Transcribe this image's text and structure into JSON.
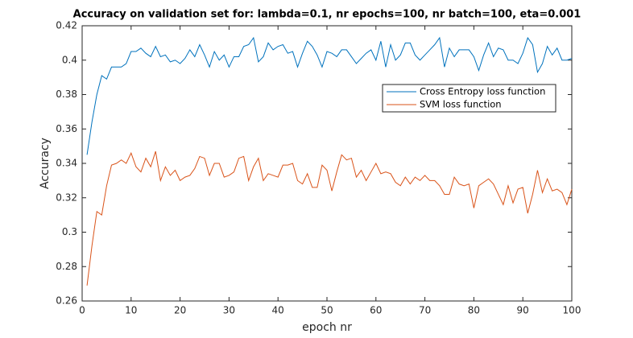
{
  "chart_data": {
    "type": "line",
    "title": "Accuracy on validation set for: lambda=0.1, nr epochs=100, nr batch=100, eta=0.001",
    "xlabel": "epoch nr",
    "ylabel": "Accuracy",
    "x": [
      1,
      2,
      3,
      4,
      5,
      6,
      7,
      8,
      9,
      10,
      11,
      12,
      13,
      14,
      15,
      16,
      17,
      18,
      19,
      20,
      21,
      22,
      23,
      24,
      25,
      26,
      27,
      28,
      29,
      30,
      31,
      32,
      33,
      34,
      35,
      36,
      37,
      38,
      39,
      40,
      41,
      42,
      43,
      44,
      45,
      46,
      47,
      48,
      49,
      50,
      51,
      52,
      53,
      54,
      55,
      56,
      57,
      58,
      59,
      60,
      61,
      62,
      63,
      64,
      65,
      66,
      67,
      68,
      69,
      70,
      71,
      72,
      73,
      74,
      75,
      76,
      77,
      78,
      79,
      80,
      81,
      82,
      83,
      84,
      85,
      86,
      87,
      88,
      89,
      90,
      91,
      92,
      93,
      94,
      95,
      96,
      97,
      98,
      99,
      100
    ],
    "series": [
      {
        "name": "Cross Entropy loss function",
        "color": "#0072bd",
        "values": [
          0.345,
          0.364,
          0.38,
          0.391,
          0.389,
          0.396,
          0.396,
          0.396,
          0.398,
          0.405,
          0.405,
          0.407,
          0.404,
          0.402,
          0.408,
          0.402,
          0.403,
          0.399,
          0.4,
          0.398,
          0.401,
          0.406,
          0.402,
          0.409,
          0.403,
          0.396,
          0.405,
          0.4,
          0.403,
          0.396,
          0.402,
          0.402,
          0.408,
          0.409,
          0.413,
          0.399,
          0.402,
          0.41,
          0.406,
          0.408,
          0.409,
          0.404,
          0.405,
          0.396,
          0.404,
          0.411,
          0.408,
          0.403,
          0.396,
          0.405,
          0.404,
          0.402,
          0.406,
          0.406,
          0.402,
          0.398,
          0.401,
          0.404,
          0.406,
          0.4,
          0.411,
          0.396,
          0.409,
          0.4,
          0.403,
          0.41,
          0.41,
          0.403,
          0.4,
          0.403,
          0.406,
          0.409,
          0.413,
          0.396,
          0.407,
          0.402,
          0.406,
          0.406,
          0.406,
          0.402,
          0.394,
          0.403,
          0.41,
          0.402,
          0.407,
          0.406,
          0.4,
          0.4,
          0.398,
          0.404,
          0.413,
          0.409,
          0.393,
          0.398,
          0.408,
          0.403,
          0.407,
          0.4,
          0.4,
          0.401
        ]
      },
      {
        "name": "SVM loss function",
        "color": "#d95319",
        "values": [
          0.269,
          0.292,
          0.312,
          0.31,
          0.327,
          0.339,
          0.34,
          0.342,
          0.34,
          0.346,
          0.338,
          0.335,
          0.343,
          0.338,
          0.347,
          0.33,
          0.338,
          0.333,
          0.336,
          0.33,
          0.332,
          0.333,
          0.337,
          0.344,
          0.343,
          0.333,
          0.34,
          0.34,
          0.332,
          0.333,
          0.335,
          0.343,
          0.344,
          0.33,
          0.338,
          0.343,
          0.33,
          0.334,
          0.333,
          0.332,
          0.339,
          0.339,
          0.34,
          0.33,
          0.328,
          0.334,
          0.326,
          0.326,
          0.339,
          0.336,
          0.324,
          0.335,
          0.345,
          0.342,
          0.343,
          0.332,
          0.336,
          0.33,
          0.335,
          0.34,
          0.334,
          0.335,
          0.334,
          0.329,
          0.327,
          0.332,
          0.328,
          0.332,
          0.33,
          0.333,
          0.33,
          0.33,
          0.327,
          0.322,
          0.322,
          0.332,
          0.328,
          0.327,
          0.328,
          0.314,
          0.327,
          0.329,
          0.331,
          0.328,
          0.322,
          0.316,
          0.327,
          0.317,
          0.325,
          0.326,
          0.311,
          0.322,
          0.336,
          0.323,
          0.331,
          0.324,
          0.325,
          0.323,
          0.316,
          0.325
        ]
      }
    ],
    "xlim": [
      0,
      100
    ],
    "xticks": [
      0,
      10,
      20,
      30,
      40,
      50,
      60,
      70,
      80,
      90,
      100
    ],
    "ylim": [
      0.26,
      0.42
    ],
    "yticks": [
      0.26,
      0.28,
      0.3,
      0.32,
      0.34,
      0.36,
      0.38,
      0.4,
      0.42
    ],
    "grid": false,
    "legend": "upper right"
  }
}
